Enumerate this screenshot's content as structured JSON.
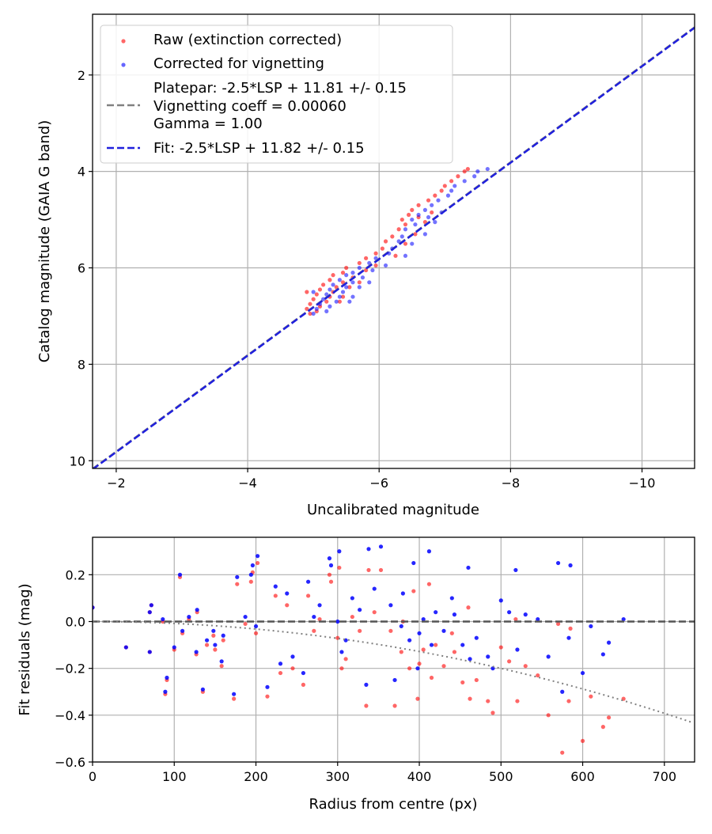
{
  "colors": {
    "raw": "#ff0000",
    "corrected": "#0000ff",
    "platepar": "#808080",
    "fit": "#2020dd",
    "grid": "#b0b0b0"
  },
  "chart_data": [
    {
      "type": "scatter",
      "xlabel": "Uncalibrated magnitude",
      "ylabel": "Catalog magnitude (GAIA G band)",
      "xlim": [
        -1.64,
        -10.8
      ],
      "ylim": [
        10.16,
        0.74
      ],
      "y_inverted": true,
      "x_inverted": true,
      "xticks": [
        -2,
        -4,
        -6,
        -8,
        -10
      ],
      "xtick_labels": [
        "−2",
        "−4",
        "−6",
        "−8",
        "−10"
      ],
      "yticks": [
        2,
        4,
        6,
        8,
        10
      ],
      "ytick_labels": [
        "2",
        "4",
        "6",
        "8",
        "10"
      ],
      "grid": true,
      "legend_position": "top-left",
      "legend": [
        {
          "label": "Raw (extinction corrected)",
          "kind": "marker",
          "color": "#ff0000"
        },
        {
          "label": "Corrected for vignetting",
          "kind": "marker",
          "color": "#0000ff"
        },
        {
          "label": "Platepar: -2.5*LSP + 11.81 +/- 0.15",
          "label2": "Vignetting coeff = 0.00060",
          "label3": "Gamma = 1.00",
          "kind": "dash",
          "color": "#808080"
        },
        {
          "label": "Fit: -2.5*LSP + 11.82 +/- 0.15",
          "kind": "dash",
          "color": "#2020dd"
        }
      ],
      "lines": [
        {
          "name": "Platepar",
          "intercept": 11.81,
          "slope": 1
        },
        {
          "name": "Fit",
          "intercept": 11.82,
          "slope": 1
        }
      ],
      "catalog": [
        3.95,
        4.0,
        4.1,
        4.2,
        4.3,
        4.4,
        4.5,
        4.6,
        4.7,
        4.8,
        4.85,
        4.9,
        4.95,
        5.0,
        5.05,
        5.1,
        5.2,
        5.3,
        5.35,
        5.45,
        5.5,
        5.6,
        5.7,
        5.75,
        5.8,
        5.9,
        5.95,
        6.0,
        6.05,
        6.1,
        6.15,
        6.2,
        6.25,
        6.3,
        6.35,
        6.4,
        6.45,
        6.5,
        6.55,
        6.6,
        6.65,
        6.7,
        6.75,
        6.8,
        6.85,
        6.9,
        6.95,
        6.6,
        6.4,
        6.7,
        6.3,
        6.5
      ],
      "corrected_x": [
        -7.65,
        -7.5,
        -7.45,
        -7.3,
        -7.15,
        -7.1,
        -7.05,
        -6.9,
        -6.8,
        -6.7,
        -6.95,
        -6.6,
        -6.75,
        -6.5,
        -6.85,
        -6.55,
        -6.4,
        -6.7,
        -6.35,
        -6.3,
        -6.5,
        -6.2,
        -6.15,
        -6.4,
        -5.95,
        -5.85,
        -6.1,
        -5.7,
        -5.9,
        -5.6,
        -5.5,
        -5.75,
        -5.4,
        -5.6,
        -5.3,
        -5.5,
        -5.25,
        -5.45,
        -5.2,
        -5.4,
        -5.15,
        -5.35,
        -5.1,
        -5.25,
        -5.05,
        -5.2,
        -5.0,
        -5.6,
        -5.7,
        -5.55,
        -5.85,
        -5.0
      ],
      "raw_x": [
        -7.35,
        -7.3,
        -7.2,
        -7.1,
        -7.0,
        -6.95,
        -6.85,
        -6.75,
        -6.6,
        -6.5,
        -6.8,
        -6.45,
        -6.6,
        -6.35,
        -6.7,
        -6.4,
        -6.3,
        -6.55,
        -6.2,
        -6.1,
        -6.4,
        -6.05,
        -5.95,
        -6.25,
        -5.8,
        -5.7,
        -5.95,
        -5.5,
        -5.8,
        -5.45,
        -5.3,
        -5.6,
        -5.25,
        -5.45,
        -5.15,
        -5.35,
        -5.1,
        -5.3,
        -5.05,
        -5.25,
        -5.0,
        -5.2,
        -4.95,
        -5.1,
        -4.9,
        -5.05,
        -4.95,
        -5.45,
        -5.55,
        -5.4,
        -5.7,
        -4.9
      ]
    },
    {
      "type": "scatter",
      "xlabel": "Radius from centre (px)",
      "ylabel": "Fit residuals (mag)",
      "xlim": [
        0,
        737
      ],
      "ylim": [
        -0.6,
        0.36
      ],
      "xticks": [
        0,
        100,
        200,
        300,
        400,
        500,
        600,
        700
      ],
      "xtick_labels": [
        "0",
        "100",
        "200",
        "300",
        "400",
        "500",
        "600",
        "700"
      ],
      "yticks": [
        -0.6,
        -0.4,
        -0.2,
        0.0,
        0.2
      ],
      "ytick_labels": [
        "−0.6",
        "−0.4",
        "−0.2",
        "0.0",
        "0.2"
      ],
      "grid": true,
      "zero_line": 0,
      "vignetting_curve_coeff": -8e-07,
      "radius": [
        0,
        41,
        70,
        70,
        72,
        86,
        89,
        91,
        100,
        107,
        110,
        118,
        127,
        128,
        135,
        140,
        148,
        150,
        158,
        160,
        173,
        177,
        187,
        194,
        196,
        200,
        202,
        214,
        224,
        230,
        238,
        245,
        258,
        264,
        271,
        278,
        290,
        292,
        300,
        302,
        305,
        310,
        318,
        327,
        335,
        338,
        345,
        353,
        365,
        370,
        378,
        388,
        393,
        398,
        400,
        405,
        412,
        420,
        430,
        443,
        453,
        460,
        470,
        484,
        490,
        500,
        510,
        518,
        530,
        545,
        558,
        570,
        575,
        583,
        585,
        600,
        610,
        625,
        632,
        650,
        380,
        415,
        440,
        462,
        520
      ],
      "corrected_residual": [
        0.06,
        -0.11,
        0.04,
        -0.13,
        0.07,
        0.01,
        -0.3,
        -0.24,
        -0.11,
        0.2,
        -0.04,
        0.02,
        -0.13,
        0.05,
        -0.29,
        -0.08,
        -0.04,
        -0.1,
        -0.17,
        -0.06,
        -0.31,
        0.19,
        0.02,
        0.2,
        0.24,
        -0.02,
        0.28,
        -0.28,
        0.15,
        -0.18,
        0.12,
        -0.15,
        -0.22,
        0.17,
        0.02,
        0.07,
        0.27,
        0.24,
        0.0,
        0.3,
        -0.13,
        -0.08,
        0.1,
        0.05,
        -0.27,
        0.31,
        0.14,
        0.32,
        0.07,
        -0.25,
        -0.02,
        -0.08,
        0.25,
        -0.2,
        -0.05,
        0.01,
        0.3,
        0.04,
        -0.04,
        0.03,
        -0.1,
        0.23,
        -0.07,
        -0.15,
        -0.2,
        0.09,
        0.04,
        0.22,
        0.03,
        0.01,
        -0.15,
        0.25,
        -0.3,
        -0.07,
        0.24,
        -0.22,
        -0.02,
        -0.14,
        -0.09,
        0.01,
        0.12,
        -0.1,
        0.1,
        -0.16,
        -0.12
      ],
      "raw_residual": [
        0.06,
        -0.11,
        0.04,
        -0.13,
        0.07,
        0.0,
        -0.31,
        -0.25,
        -0.12,
        0.19,
        -0.05,
        0.01,
        -0.14,
        0.04,
        -0.3,
        -0.1,
        -0.06,
        -0.12,
        -0.19,
        -0.08,
        -0.33,
        0.16,
        -0.01,
        0.17,
        0.21,
        -0.05,
        0.25,
        -0.32,
        0.11,
        -0.22,
        0.07,
        -0.2,
        -0.27,
        0.11,
        -0.04,
        0.01,
        0.2,
        0.17,
        -0.07,
        0.23,
        -0.2,
        -0.16,
        0.02,
        -0.04,
        -0.36,
        0.22,
        0.04,
        0.22,
        -0.04,
        -0.36,
        -0.13,
        -0.2,
        0.13,
        -0.33,
        -0.18,
        -0.12,
        0.16,
        -0.1,
        -0.19,
        -0.13,
        -0.26,
        0.06,
        -0.25,
        -0.34,
        -0.39,
        -0.11,
        -0.17,
        0.01,
        -0.19,
        -0.23,
        -0.4,
        -0.01,
        -0.56,
        -0.34,
        -0.03,
        -0.51,
        -0.32,
        -0.45,
        -0.41,
        -0.33,
        0.0,
        -0.24,
        -0.05,
        -0.33,
        -0.34
      ]
    }
  ]
}
